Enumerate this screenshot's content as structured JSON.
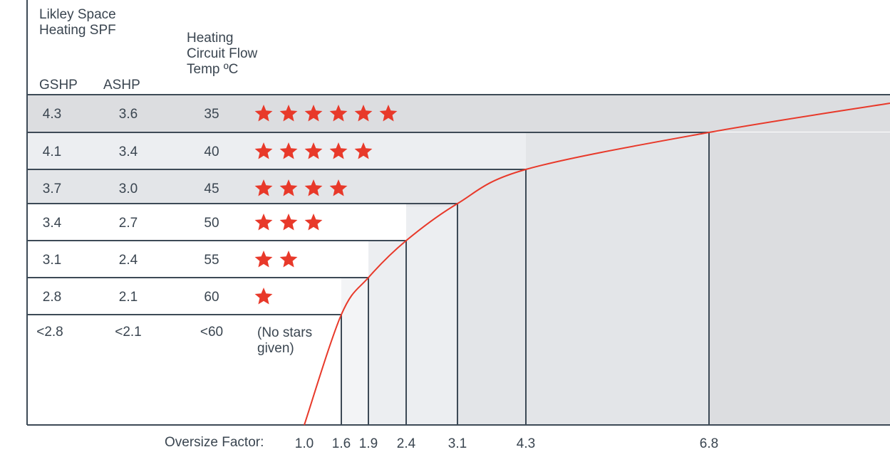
{
  "header": {
    "spf_title_line1": "Likley Space",
    "spf_title_line2": "Heating SPF",
    "gshp_label": "GSHP",
    "ashp_label": "ASHP",
    "flow_title_line1": "Heating",
    "flow_title_line2": "Circuit Flow",
    "flow_title_line3": "Temp ºC"
  },
  "colors": {
    "star": "#e8392a",
    "curve": "#e8392a",
    "lines": "#3d4a56",
    "band_dark": "#dcdde0",
    "band_light": "#eceef1",
    "text": "#3a4550"
  },
  "chart_data": {
    "type": "table",
    "columns": [
      "GSHP",
      "ASHP",
      "Heating Circuit Flow Temp ºC",
      "Stars"
    ],
    "rows": [
      {
        "gshp": "4.3",
        "ashp": "3.6",
        "flow": "35",
        "stars": 6,
        "oversize_factor": 6.8
      },
      {
        "gshp": "4.1",
        "ashp": "3.4",
        "flow": "40",
        "stars": 5,
        "oversize_factor": 4.3
      },
      {
        "gshp": "3.7",
        "ashp": "3.0",
        "flow": "45",
        "stars": 4,
        "oversize_factor": 3.1
      },
      {
        "gshp": "3.4",
        "ashp": "2.7",
        "flow": "50",
        "stars": 3,
        "oversize_factor": 2.4
      },
      {
        "gshp": "3.1",
        "ashp": "2.4",
        "flow": "55",
        "stars": 2,
        "oversize_factor": 1.9
      },
      {
        "gshp": "2.8",
        "ashp": "2.1",
        "flow": "60",
        "stars": 1,
        "oversize_factor": 1.6
      }
    ],
    "last_row": {
      "gshp": "<2.8",
      "ashp": "<2.1",
      "flow": "<60",
      "note_line1": "(No stars",
      "note_line2": "given)",
      "oversize_factor": 1.0
    },
    "xlabel": "Oversize Factor:",
    "x_ticks": [
      "1.0",
      "1.6",
      "1.9",
      "2.4",
      "3.1",
      "4.3",
      "6.8"
    ],
    "curve": "oversize factor vs flow temperature (rising)"
  }
}
